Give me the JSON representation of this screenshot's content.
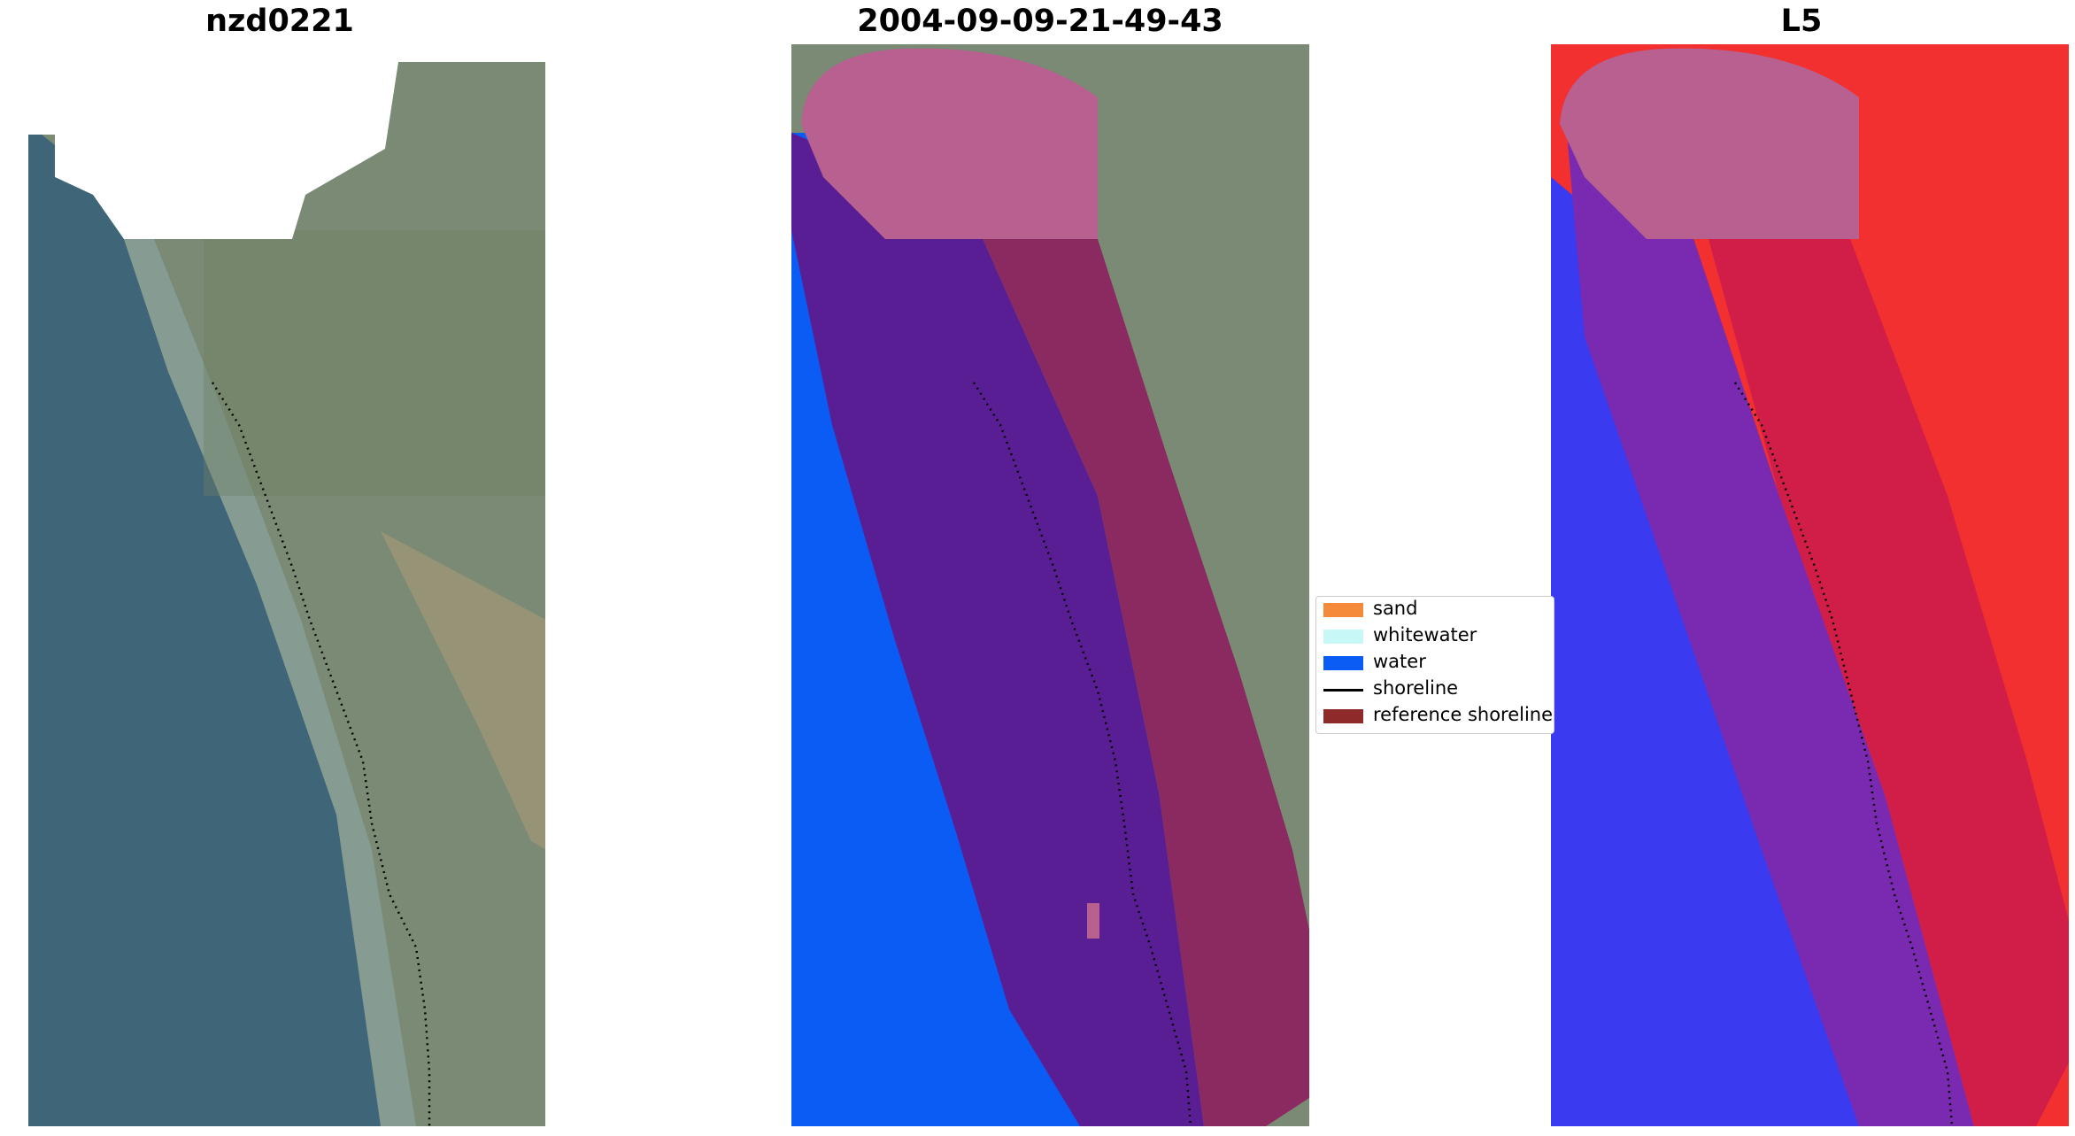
{
  "panels": [
    {
      "title": "nzd0221"
    },
    {
      "title": "2004-09-09-21-49-43"
    },
    {
      "title": "L5"
    }
  ],
  "legend": [
    {
      "label": "sand",
      "color": "#f58a3a",
      "kind": "patch"
    },
    {
      "label": "whitewater",
      "color": "#c8f7f7",
      "kind": "patch"
    },
    {
      "label": "water",
      "color": "#0b5cf5",
      "kind": "patch"
    },
    {
      "label": "shoreline",
      "color": "#000000",
      "kind": "line"
    },
    {
      "label": "reference shoreline",
      "color": "#8f2a2a",
      "kind": "patch"
    }
  ],
  "colors": {
    "sea": "#3e6578",
    "land": "#7a8a74",
    "water_class": "#0b5cf5",
    "buffer_overlay": "#6a1a9a",
    "reference_overlay": "#b85a8f",
    "ndwi_water": "#3a3af0",
    "ndwi_land": "#f23030"
  }
}
